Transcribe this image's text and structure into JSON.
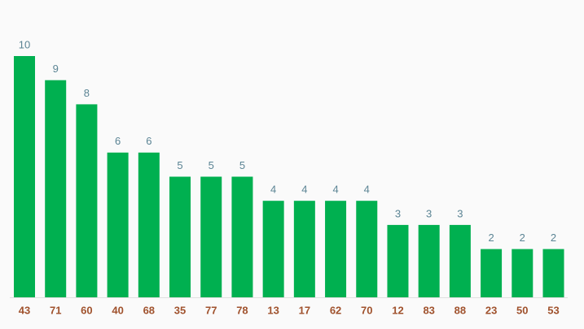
{
  "chart_data": {
    "type": "bar",
    "categories": [
      "43",
      "71",
      "60",
      "40",
      "68",
      "35",
      "77",
      "78",
      "13",
      "17",
      "62",
      "70",
      "12",
      "83",
      "88",
      "23",
      "50",
      "53"
    ],
    "values": [
      10,
      9,
      8,
      6,
      6,
      5,
      5,
      5,
      4,
      4,
      4,
      4,
      3,
      3,
      3,
      2,
      2,
      2
    ],
    "color": "#00b050"
  }
}
